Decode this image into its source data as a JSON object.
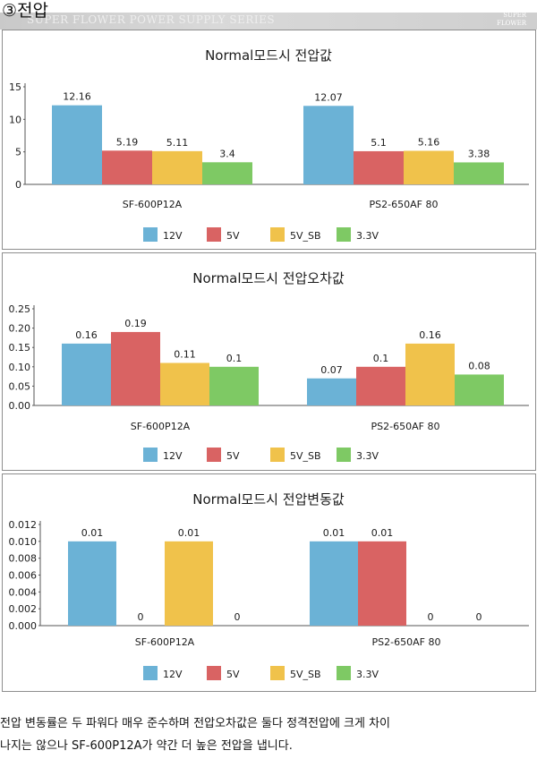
{
  "header": {
    "section_title": "③전압",
    "watermark": "SUPER FLOWER POWER SUPPLY SERIES",
    "brand": "SUPER FLOWER"
  },
  "legend": [
    "12V",
    "5V",
    "5V_SB",
    "3.3V"
  ],
  "colors": {
    "12V": "#6bb2d6",
    "5V": "#d96363",
    "5V_SB": "#f0c24b",
    "3.3V": "#7ec964",
    "axis": "#555555"
  },
  "chart_data": [
    {
      "type": "bar",
      "title": "Normal모드시 전압값",
      "categories": [
        "SF-600P12A",
        "PS2-650AF 80"
      ],
      "series": [
        {
          "name": "12V",
          "values": [
            12.16,
            12.07
          ]
        },
        {
          "name": "5V",
          "values": [
            5.19,
            5.1
          ]
        },
        {
          "name": "5V_SB",
          "values": [
            5.11,
            5.16
          ]
        },
        {
          "name": "3.3V",
          "values": [
            3.4,
            3.38
          ]
        }
      ],
      "value_labels": [
        [
          "12.16",
          "12.07"
        ],
        [
          "5.19",
          "5.1"
        ],
        [
          "5.11",
          "5.16"
        ],
        [
          "3.4",
          "3.38"
        ]
      ],
      "ylim": [
        0,
        15
      ],
      "yticks": [
        "0",
        "5",
        "10",
        "15"
      ],
      "ytick_values": [
        0,
        5,
        10,
        15
      ],
      "legend_position": "bottom",
      "grid": false
    },
    {
      "type": "bar",
      "title": "Normal모드시 전압오차값",
      "categories": [
        "SF-600P12A",
        "PS2-650AF 80"
      ],
      "series": [
        {
          "name": "12V",
          "values": [
            0.16,
            0.07
          ]
        },
        {
          "name": "5V",
          "values": [
            0.19,
            0.1
          ]
        },
        {
          "name": "5V_SB",
          "values": [
            0.11,
            0.16
          ]
        },
        {
          "name": "3.3V",
          "values": [
            0.1,
            0.08
          ]
        }
      ],
      "value_labels": [
        [
          "0.16",
          "0.07"
        ],
        [
          "0.19",
          "0.1"
        ],
        [
          "0.11",
          "0.16"
        ],
        [
          "0.1",
          "0.08"
        ]
      ],
      "ylim": [
        0,
        0.25
      ],
      "yticks": [
        "0.00",
        "0.05",
        "0.10",
        "0.15",
        "0.20",
        "0.25"
      ],
      "ytick_values": [
        0,
        0.05,
        0.1,
        0.15,
        0.2,
        0.25
      ],
      "legend_position": "bottom",
      "grid": false
    },
    {
      "type": "bar",
      "title": "Normal모드시 전압변동값",
      "categories": [
        "SF-600P12A",
        "PS2-650AF 80"
      ],
      "series": [
        {
          "name": "12V",
          "values": [
            0.01,
            0.01
          ]
        },
        {
          "name": "5V",
          "values": [
            0,
            0.01
          ]
        },
        {
          "name": "5V_SB",
          "values": [
            0.01,
            0
          ]
        },
        {
          "name": "3.3V",
          "values": [
            0,
            0
          ]
        }
      ],
      "value_labels": [
        [
          "0.01",
          "0.01"
        ],
        [
          "0",
          "0.01"
        ],
        [
          "0.01",
          "0"
        ],
        [
          "0",
          "0"
        ]
      ],
      "ylim": [
        0,
        0.012
      ],
      "yticks": [
        "0.000",
        "0.002",
        "0.004",
        "0.006",
        "0.008",
        "0.010",
        "0.012"
      ],
      "ytick_values": [
        0,
        0.002,
        0.004,
        0.006,
        0.008,
        0.01,
        0.012
      ],
      "legend_position": "bottom",
      "grid": false
    }
  ],
  "caption": {
    "line1": "전압 변동률은 두 파워다 매우 준수하며 전압오차값은 둘다 정격전압에 크게 차이",
    "line2": "나지는 않으나 SF-600P12A가 약간 더 높은 전압을 냅니다."
  }
}
